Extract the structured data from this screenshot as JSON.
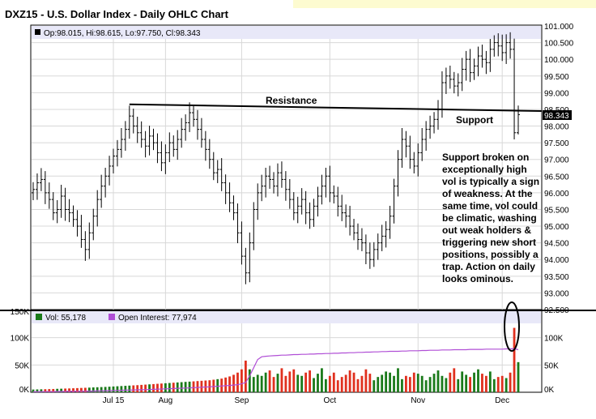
{
  "header": {
    "title": "DXZ15 - U.S. Dollar Index - Daily OHLC Chart",
    "ohlc_text": "Op:98.015, Hi:98.615, Lo:97.750, Cl:98.343",
    "last_price": "98.343"
  },
  "annotations": {
    "resistance": "Resistance",
    "support": "Support",
    "note_lines": [
      "Support broken on",
      "exceptionally high",
      "vol is typically a sign",
      "of weakness.  At the",
      "same time, vol could",
      "be climatic, washing",
      "out weak holders &",
      "triggering new short",
      "positions, possibly a",
      "trap.  Action on daily",
      "looks ominous."
    ]
  },
  "volume_panel": {
    "vol_label": "Vol: 55,178",
    "oi_label": "Open Interest: 77,974"
  },
  "colors": {
    "up": "#1a7a1a",
    "down": "#e0301e",
    "open_interest": "#b04fd6",
    "band": "#e8e8f8",
    "title_band": "#fdfbd0"
  },
  "chart_data": {
    "type": "ohlc",
    "title": "DXZ15 - U.S. Dollar Index - Daily OHLC Chart",
    "price_ylim": [
      92.5,
      101.0
    ],
    "price_ticks": [
      "101.000",
      "100.500",
      "100.000",
      "99.500",
      "99.000",
      "98.500",
      "98.000",
      "97.500",
      "97.000",
      "96.500",
      "96.000",
      "95.500",
      "95.000",
      "94.500",
      "94.000",
      "93.500",
      "93.000",
      "92.500"
    ],
    "volume_ylim": [
      0,
      150000
    ],
    "volume_left_ticks": [
      "150K",
      "100K",
      "50K",
      "0K"
    ],
    "volume_right_ticks": [
      "100K",
      "50K",
      "0K"
    ],
    "x_labels": [
      {
        "label": "Jul 15",
        "index": 20
      },
      {
        "label": "Aug",
        "index": 33
      },
      {
        "label": "Sep",
        "index": 52
      },
      {
        "label": "Oct",
        "index": 74
      },
      {
        "label": "Nov",
        "index": 96
      },
      {
        "label": "Dec",
        "index": 117
      }
    ],
    "n_bars": 122,
    "close": [
      96.1,
      96.3,
      96.4,
      96.0,
      95.8,
      95.4,
      95.5,
      95.9,
      95.5,
      95.4,
      95.2,
      95.0,
      94.6,
      94.3,
      94.8,
      95.3,
      95.8,
      96.2,
      96.5,
      96.8,
      97.1,
      97.3,
      97.6,
      97.9,
      98.3,
      98.0,
      97.8,
      97.6,
      97.4,
      97.7,
      97.5,
      97.2,
      96.9,
      97.2,
      97.5,
      97.3,
      97.6,
      97.9,
      98.1,
      98.4,
      98.2,
      97.9,
      97.6,
      97.3,
      97.0,
      96.6,
      96.7,
      96.3,
      96.0,
      95.7,
      95.4,
      94.8,
      94.1,
      93.6,
      94.5,
      95.5,
      96.0,
      96.2,
      96.5,
      96.4,
      96.2,
      96.6,
      96.4,
      96.1,
      95.8,
      95.4,
      95.6,
      95.8,
      95.4,
      95.2,
      95.6,
      95.9,
      96.2,
      96.5,
      96.0,
      95.9,
      95.6,
      95.4,
      95.3,
      95.0,
      94.8,
      94.6,
      94.5,
      94.2,
      94.0,
      94.3,
      94.5,
      94.7,
      94.9,
      95.3,
      96.2,
      97.0,
      97.6,
      97.4,
      97.0,
      96.8,
      97.2,
      97.6,
      97.9,
      98.0,
      98.2,
      98.5,
      99.3,
      99.5,
      99.4,
      99.2,
      99.3,
      99.7,
      100.0,
      99.6,
      99.8,
      100.1,
      100.0,
      99.9,
      100.3,
      100.5,
      100.4,
      100.2,
      100.5,
      100.3,
      97.8,
      98.343
    ],
    "volume": [
      5000,
      5200,
      5400,
      5600,
      5800,
      6000,
      6300,
      6500,
      6800,
      7000,
      7300,
      7600,
      7900,
      8200,
      8500,
      8900,
      9200,
      9500,
      9800,
      10200,
      10600,
      11000,
      11400,
      11800,
      12200,
      12600,
      13000,
      13500,
      14000,
      14500,
      15000,
      15500,
      16000,
      16500,
      17000,
      17500,
      18000,
      18500,
      19000,
      19500,
      20000,
      20500,
      21000,
      21500,
      22000,
      23000,
      24000,
      25000,
      27000,
      29000,
      32000,
      36000,
      42000,
      58000,
      42000,
      28000,
      32000,
      30000,
      36000,
      40000,
      28000,
      34000,
      44000,
      30000,
      38000,
      42000,
      32000,
      30000,
      36000,
      40000,
      26000,
      34000,
      44000,
      24000,
      30000,
      36000,
      22000,
      28000,
      32000,
      40000,
      36000,
      24000,
      30000,
      42000,
      34000,
      22000,
      28000,
      32000,
      38000,
      36000,
      30000,
      44000,
      24000,
      30000,
      28000,
      36000,
      34000,
      30000,
      22000,
      28000,
      34000,
      40000,
      30000,
      26000,
      36000,
      44000,
      24000,
      38000,
      32000,
      28000,
      36000,
      42000,
      34000,
      30000,
      38000,
      24000,
      28000,
      30000,
      26000,
      36000,
      118000,
      55178
    ],
    "open_interest": [
      1000,
      1050,
      1100,
      1150,
      1200,
      1250,
      1300,
      1400,
      1500,
      1600,
      1700,
      1800,
      1900,
      2000,
      2100,
      2200,
      2400,
      2600,
      2800,
      3000,
      3200,
      3400,
      3600,
      3800,
      4000,
      4200,
      4400,
      4600,
      4800,
      5000,
      5300,
      5600,
      5900,
      6200,
      6500,
      6800,
      7100,
      7400,
      7700,
      8000,
      8400,
      8800,
      9200,
      9600,
      10000,
      10500,
      11000,
      11500,
      12000,
      12500,
      13200,
      14000,
      15500,
      18000,
      30000,
      45000,
      60000,
      65000,
      66000,
      66500,
      67000,
      67500,
      68000,
      68000,
      68500,
      69000,
      69000,
      69500,
      69500,
      70000,
      70000,
      70500,
      70500,
      71000,
      71000,
      71500,
      71500,
      72000,
      72000,
      72500,
      72500,
      73000,
      73000,
      73500,
      73500,
      74000,
      74000,
      74500,
      74500,
      75000,
      75000,
      75000,
      75500,
      75500,
      76000,
      76000,
      76000,
      76500,
      76500,
      77000,
      77000,
      77000,
      77500,
      77500,
      77500,
      78000,
      78000,
      78000,
      78000,
      78500,
      78500,
      78500,
      78500,
      79000,
      79000,
      79000,
      79000,
      79000,
      79500,
      79500,
      80000,
      77974
    ],
    "resistance_line": {
      "from": {
        "index": 24,
        "price": 98.65
      },
      "to": {
        "index": 121,
        "price": 98.45
      }
    }
  }
}
